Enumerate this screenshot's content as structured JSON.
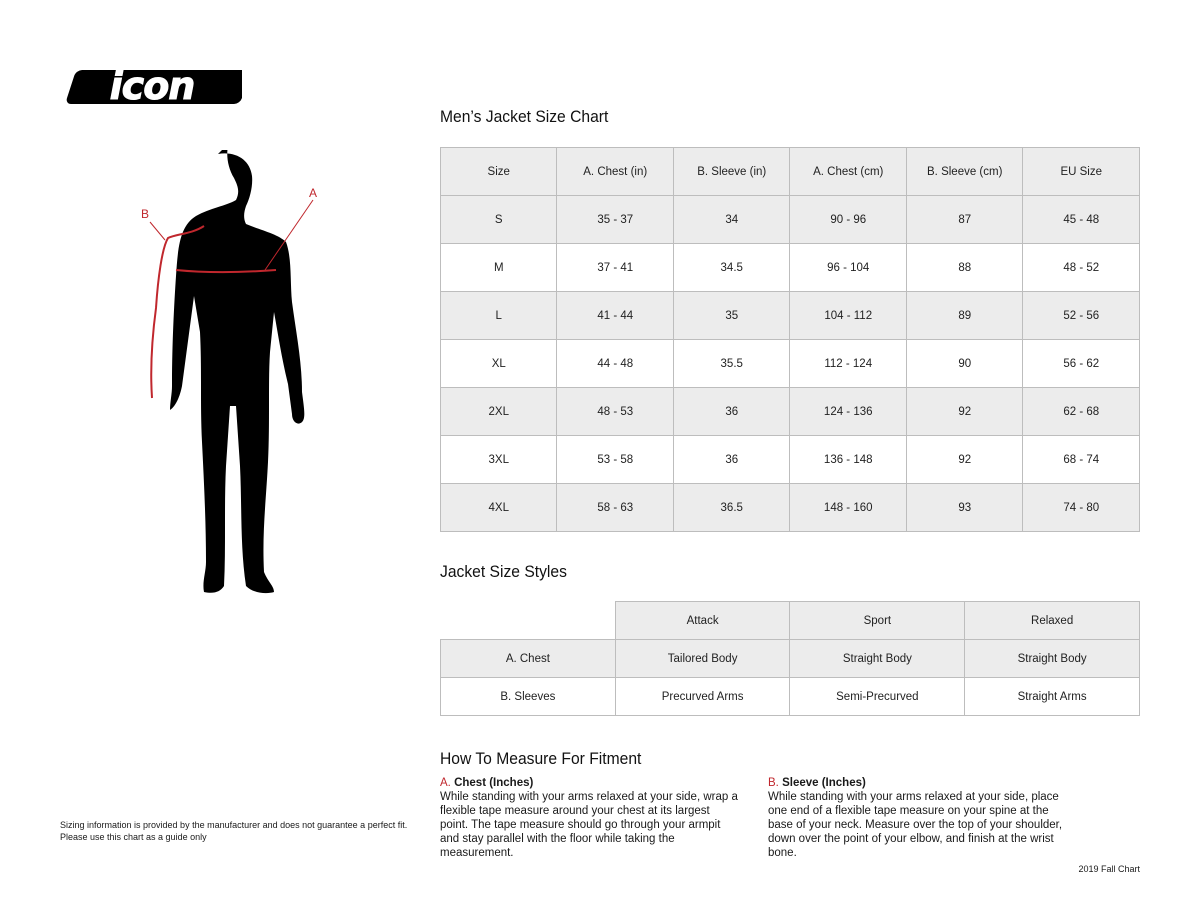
{
  "logo": {
    "text": "icon"
  },
  "figure": {
    "label_a": "A",
    "label_b": "B"
  },
  "size_chart": {
    "title": "Men’s Jacket Size Chart",
    "headers": [
      "Size",
      "A. Chest (in)",
      "B. Sleeve (in)",
      "A. Chest (cm)",
      "B. Sleeve (cm)",
      "EU Size"
    ],
    "rows": [
      [
        "S",
        "35 - 37",
        "34",
        "90 - 96",
        "87",
        "45 - 48"
      ],
      [
        "M",
        "37 - 41",
        "34.5",
        "96 - 104",
        "88",
        "48 - 52"
      ],
      [
        "L",
        "41 - 44",
        "35",
        "104 - 112",
        "89",
        "52 - 56"
      ],
      [
        "XL",
        "44 - 48",
        "35.5",
        "112 - 124",
        "90",
        "56 - 62"
      ],
      [
        "2XL",
        "48 - 53",
        "36",
        "124 - 136",
        "92",
        "62 - 68"
      ],
      [
        "3XL",
        "53 - 58",
        "36",
        "136 - 148",
        "92",
        "68 - 74"
      ],
      [
        "4XL",
        "58 - 63",
        "36.5",
        "148 - 160",
        "93",
        "74 - 80"
      ]
    ]
  },
  "styles": {
    "title": "Jacket Size Styles",
    "headers": [
      "",
      "Attack",
      "Sport",
      "Relaxed"
    ],
    "rows": [
      [
        "A. Chest",
        "Tailored Body",
        "Straight Body",
        "Straight Body"
      ],
      [
        "B. Sleeves",
        "Precurved Arms",
        "Semi-Precurved",
        "Straight Arms"
      ]
    ]
  },
  "measure": {
    "title": "How To Measure For Fitment",
    "chest": {
      "letter": "A.",
      "heading": "Chest (Inches)",
      "text": "While standing with your arms relaxed at your side, wrap a flexible tape measure around your chest at its largest point. The tape measure should go through your armpit and stay parallel with the floor while taking the measurement."
    },
    "sleeve": {
      "letter": "B.",
      "heading": "Sleeve (Inches)",
      "text": "While standing with your arms relaxed at your side, place one end of a flexible tape measure on your spine at the base of your neck. Measure over the top of your shoulder, down over the point of your elbow, and finish at the wrist bone."
    }
  },
  "disclaimer": {
    "line1": "Sizing information is provided by the manufacturer and does not guarantee a perfect fit.",
    "line2": "Please use this chart as a guide only"
  },
  "footer": {
    "edition": "2019 Fall Chart"
  },
  "colors": {
    "accent": "#c0272d",
    "row_shade": "#ececec"
  }
}
